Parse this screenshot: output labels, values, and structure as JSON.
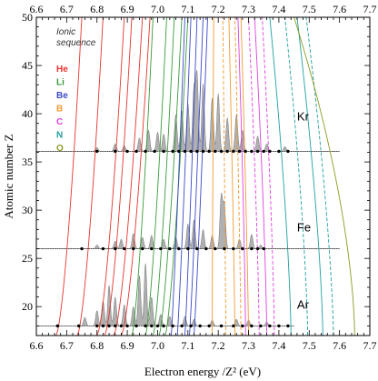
{
  "chart_data": {
    "type": "line",
    "xlabel": "Electron energy /Z² (eV)",
    "ylabel": "Atomic number Z",
    "xlim": [
      6.6,
      7.7
    ],
    "ylim": [
      17,
      50
    ],
    "x_ticks": [
      "6.6",
      "6.7",
      "6.8",
      "6.9",
      "7.0",
      "7.1",
      "7.2",
      "7.3",
      "7.4",
      "7.5",
      "7.6",
      "7.7"
    ],
    "y_ticks": [
      "20",
      "25",
      "30",
      "35",
      "40",
      "45",
      "50"
    ],
    "minor_x_step": 0.02,
    "minor_y_step": 1,
    "legend": {
      "title": "Ionic sequence",
      "entries": [
        {
          "label": "He",
          "color": "#e8342c"
        },
        {
          "label": "Li",
          "color": "#3a9a3a"
        },
        {
          "label": "Be",
          "color": "#3a48c8"
        },
        {
          "label": "B",
          "color": "#f09a30"
        },
        {
          "label": "C",
          "color": "#e040e0"
        },
        {
          "label": "N",
          "color": "#20a0a0"
        },
        {
          "label": "O",
          "color": "#8c9a20"
        }
      ]
    },
    "spectra": [
      {
        "element": "Kr",
        "baseline_z": 36.1,
        "x_start": 6.6,
        "x_end": 7.6,
        "peaks": [
          [
            6.8,
            0.4
          ],
          [
            6.86,
            0.8
          ],
          [
            6.89,
            0.6
          ],
          [
            6.94,
            1.4
          ],
          [
            6.97,
            2.2
          ],
          [
            7.0,
            2.0
          ],
          [
            7.02,
            1.8
          ],
          [
            7.06,
            3.8
          ],
          [
            7.08,
            4.2
          ],
          [
            7.1,
            5.0
          ],
          [
            7.12,
            6.5
          ],
          [
            7.13,
            8.0
          ],
          [
            7.15,
            7.0
          ],
          [
            7.18,
            5.5
          ],
          [
            7.2,
            6.0
          ],
          [
            7.23,
            3.5
          ],
          [
            7.26,
            3.8
          ],
          [
            7.28,
            2.2
          ],
          [
            7.33,
            1.6
          ],
          [
            7.36,
            0.8
          ],
          [
            7.42,
            0.5
          ]
        ],
        "markers": [
          6.8,
          6.86,
          6.9,
          6.93,
          6.96,
          6.99,
          7.02,
          7.05,
          7.07,
          7.09,
          7.11,
          7.13,
          7.15,
          7.17,
          7.19,
          7.21,
          7.23,
          7.25,
          7.27,
          7.29,
          7.31,
          7.33,
          7.35,
          7.37,
          7.4,
          7.43
        ]
      },
      {
        "element": "Fe",
        "baseline_z": 26.0,
        "x_start": 6.6,
        "x_end": 7.6,
        "peaks": [
          [
            6.8,
            0.4
          ],
          [
            6.86,
            0.8
          ],
          [
            6.88,
            1.0
          ],
          [
            6.92,
            1.6
          ],
          [
            6.95,
            1.2
          ],
          [
            6.98,
            1.4
          ],
          [
            7.02,
            1.0
          ],
          [
            7.06,
            1.2
          ],
          [
            7.1,
            2.6
          ],
          [
            7.12,
            3.0
          ],
          [
            7.15,
            2.0
          ],
          [
            7.18,
            1.4
          ],
          [
            7.21,
            5.5
          ],
          [
            7.22,
            4.5
          ],
          [
            7.27,
            1.0
          ],
          [
            7.31,
            1.5
          ],
          [
            7.34,
            0.4
          ]
        ],
        "markers": [
          6.75,
          6.82,
          6.86,
          6.89,
          6.92,
          6.95,
          6.98,
          7.01,
          7.04,
          7.07,
          7.1,
          7.13,
          7.16,
          7.19,
          7.22,
          7.25,
          7.28,
          7.31,
          7.33,
          7.35
        ]
      },
      {
        "element": "Ar",
        "baseline_z": 18.0,
        "x_start": 6.6,
        "x_end": 7.45,
        "peaks": [
          [
            6.76,
            0.9
          ],
          [
            6.8,
            1.6
          ],
          [
            6.82,
            2.6
          ],
          [
            6.84,
            4.2
          ],
          [
            6.86,
            3.0
          ],
          [
            6.89,
            2.2
          ],
          [
            6.92,
            2.0
          ],
          [
            6.94,
            5.2
          ],
          [
            6.96,
            6.5
          ],
          [
            6.98,
            3.0
          ],
          [
            7.01,
            1.2
          ],
          [
            7.04,
            1.0
          ],
          [
            7.09,
            1.0
          ],
          [
            7.12,
            0.7
          ],
          [
            7.18,
            0.6
          ],
          [
            7.26,
            0.7
          ],
          [
            7.3,
            0.6
          ],
          [
            7.36,
            0.4
          ]
        ],
        "markers": [
          6.67,
          6.74,
          6.8,
          6.82,
          6.84,
          6.86,
          6.88,
          6.9,
          6.93,
          6.96,
          6.98,
          7.0,
          7.02,
          7.05,
          7.08,
          7.11,
          7.14,
          7.17,
          7.21,
          7.25,
          7.28,
          7.31,
          7.34,
          7.37,
          7.4,
          7.43
        ]
      }
    ],
    "element_labels": [
      {
        "text": "Kr",
        "x": 7.46,
        "z": 39.3
      },
      {
        "text": "Fe",
        "x": 7.46,
        "z": 27.8
      },
      {
        "text": "Ar",
        "x": 7.46,
        "z": 19.8
      }
    ],
    "sequences": [
      {
        "name": "He",
        "color": "#e8342c",
        "lines": [
          {
            "x17": 6.665,
            "x50": 6.75,
            "k": 1.2
          },
          {
            "x17": 6.735,
            "x50": 6.82,
            "k": 1.2
          },
          {
            "x17": 6.8,
            "x50": 6.89,
            "k": 1.2
          },
          {
            "x17": 6.825,
            "x50": 6.915,
            "k": 1.2
          },
          {
            "x17": 6.855,
            "x50": 6.95,
            "k": 1.2
          },
          {
            "x17": 6.88,
            "x50": 6.975,
            "k": 1.2
          }
        ]
      },
      {
        "name": "Li",
        "color": "#3a9a3a",
        "lines": [
          {
            "x17": 6.915,
            "x50": 6.985,
            "k": 1.3
          },
          {
            "x17": 6.96,
            "x50": 7.03,
            "k": 1.3
          },
          {
            "x17": 6.985,
            "x50": 7.055,
            "k": 1.3
          },
          {
            "x17": 7.005,
            "x50": 7.08,
            "k": 1.3
          },
          {
            "x17": 7.025,
            "x50": 7.1,
            "k": 1.3
          }
        ]
      },
      {
        "name": "Be",
        "color": "#3a48c8",
        "lines": [
          {
            "x17": 7.045,
            "x50": 7.09,
            "k": 1.6
          },
          {
            "x17": 7.065,
            "x50": 7.11,
            "k": 1.6
          },
          {
            "x17": 7.09,
            "x50": 7.13,
            "k": 1.6
          },
          {
            "x17": 7.105,
            "x50": 7.15,
            "k": 1.6
          },
          {
            "x17": 7.12,
            "x50": 7.165,
            "k": 1.6
          }
        ]
      },
      {
        "name": "B",
        "color": "#f09a30",
        "lines": [
          {
            "x17": 7.18,
            "x50": 7.185,
            "k": 2.2
          },
          {
            "x17": 7.225,
            "x50": 7.215,
            "k": 2.2
          },
          {
            "x17": 7.255,
            "x50": 7.235,
            "k": 2.2
          },
          {
            "x17": 7.275,
            "x50": 7.255,
            "k": 2.2
          },
          {
            "x17": 7.3,
            "x50": 7.275,
            "k": 2.2
          }
        ]
      },
      {
        "name": "C",
        "color": "#e040e0",
        "lines": [
          {
            "x17": 7.29,
            "x50": 7.265,
            "k": 2.5
          },
          {
            "x17": 7.335,
            "x50": 7.3,
            "k": 2.5
          },
          {
            "x17": 7.36,
            "x50": 7.32,
            "k": 2.5
          },
          {
            "x17": 7.385,
            "x50": 7.345,
            "k": 2.5
          }
        ]
      },
      {
        "name": "N",
        "color": "#20a0a0",
        "lines": [
          {
            "x17": 7.44,
            "x50": 7.37,
            "k": 2.6
          },
          {
            "x17": 7.495,
            "x50": 7.42,
            "k": 2.6
          },
          {
            "x17": 7.545,
            "x50": 7.46,
            "k": 2.6
          },
          {
            "x17": 7.58,
            "x50": 7.49,
            "k": 2.6
          }
        ]
      },
      {
        "name": "O",
        "color": "#8c9a20",
        "lines": [
          {
            "x17": 7.65,
            "x50": 7.45,
            "k": 3.0
          }
        ]
      }
    ]
  }
}
